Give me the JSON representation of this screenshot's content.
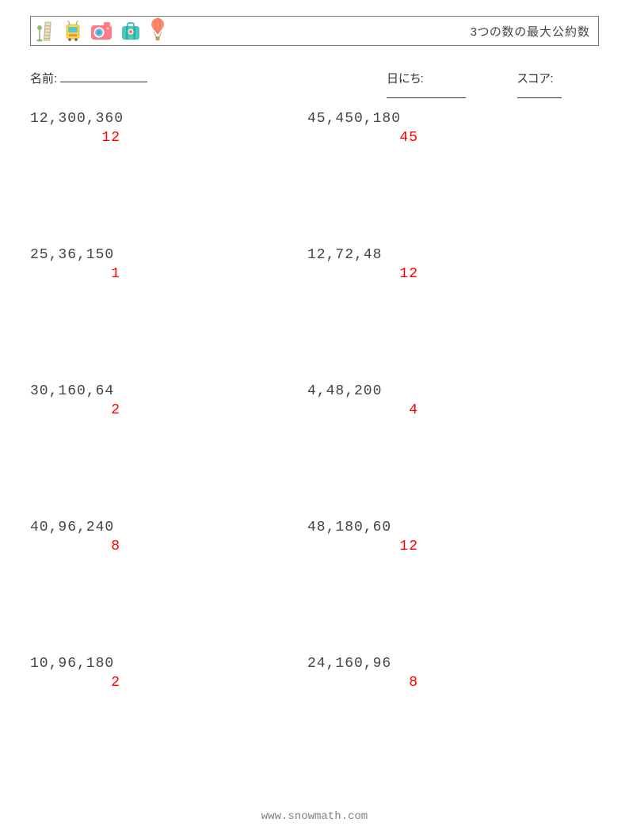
{
  "header": {
    "title": "3つの数の最大公約数",
    "icons": [
      "tower-icon",
      "tram-icon",
      "camera-icon",
      "suitcase-icon",
      "balloon-icon"
    ]
  },
  "meta": {
    "name_label": "名前:",
    "date_label": "日にち:",
    "score_label": "スコア:",
    "name_blank_width": 110,
    "date_blank_width": 100,
    "score_blank_width": 56
  },
  "grid": {
    "rows": 5,
    "cols": 2,
    "col1_answer_width": 114,
    "col2_answer_width": 140,
    "problems": [
      [
        {
          "q": "12,300,360",
          "a": "12"
        },
        {
          "q": "45,450,180",
          "a": "45"
        }
      ],
      [
        {
          "q": "25,36,150",
          "a": "1"
        },
        {
          "q": "12,72,48",
          "a": "12"
        }
      ],
      [
        {
          "q": "30,160,64",
          "a": "2"
        },
        {
          "q": "4,48,200",
          "a": "4"
        }
      ],
      [
        {
          "q": "40,96,240",
          "a": "8"
        },
        {
          "q": "48,180,60",
          "a": "12"
        }
      ],
      [
        {
          "q": "10,96,180",
          "a": "2"
        },
        {
          "q": "24,160,96",
          "a": "8"
        }
      ]
    ]
  },
  "footer": {
    "url": "www.snowmath.com"
  },
  "colors": {
    "text": "#444444",
    "answer": "#ff0000",
    "border": "#777777",
    "footer": "#808080"
  }
}
